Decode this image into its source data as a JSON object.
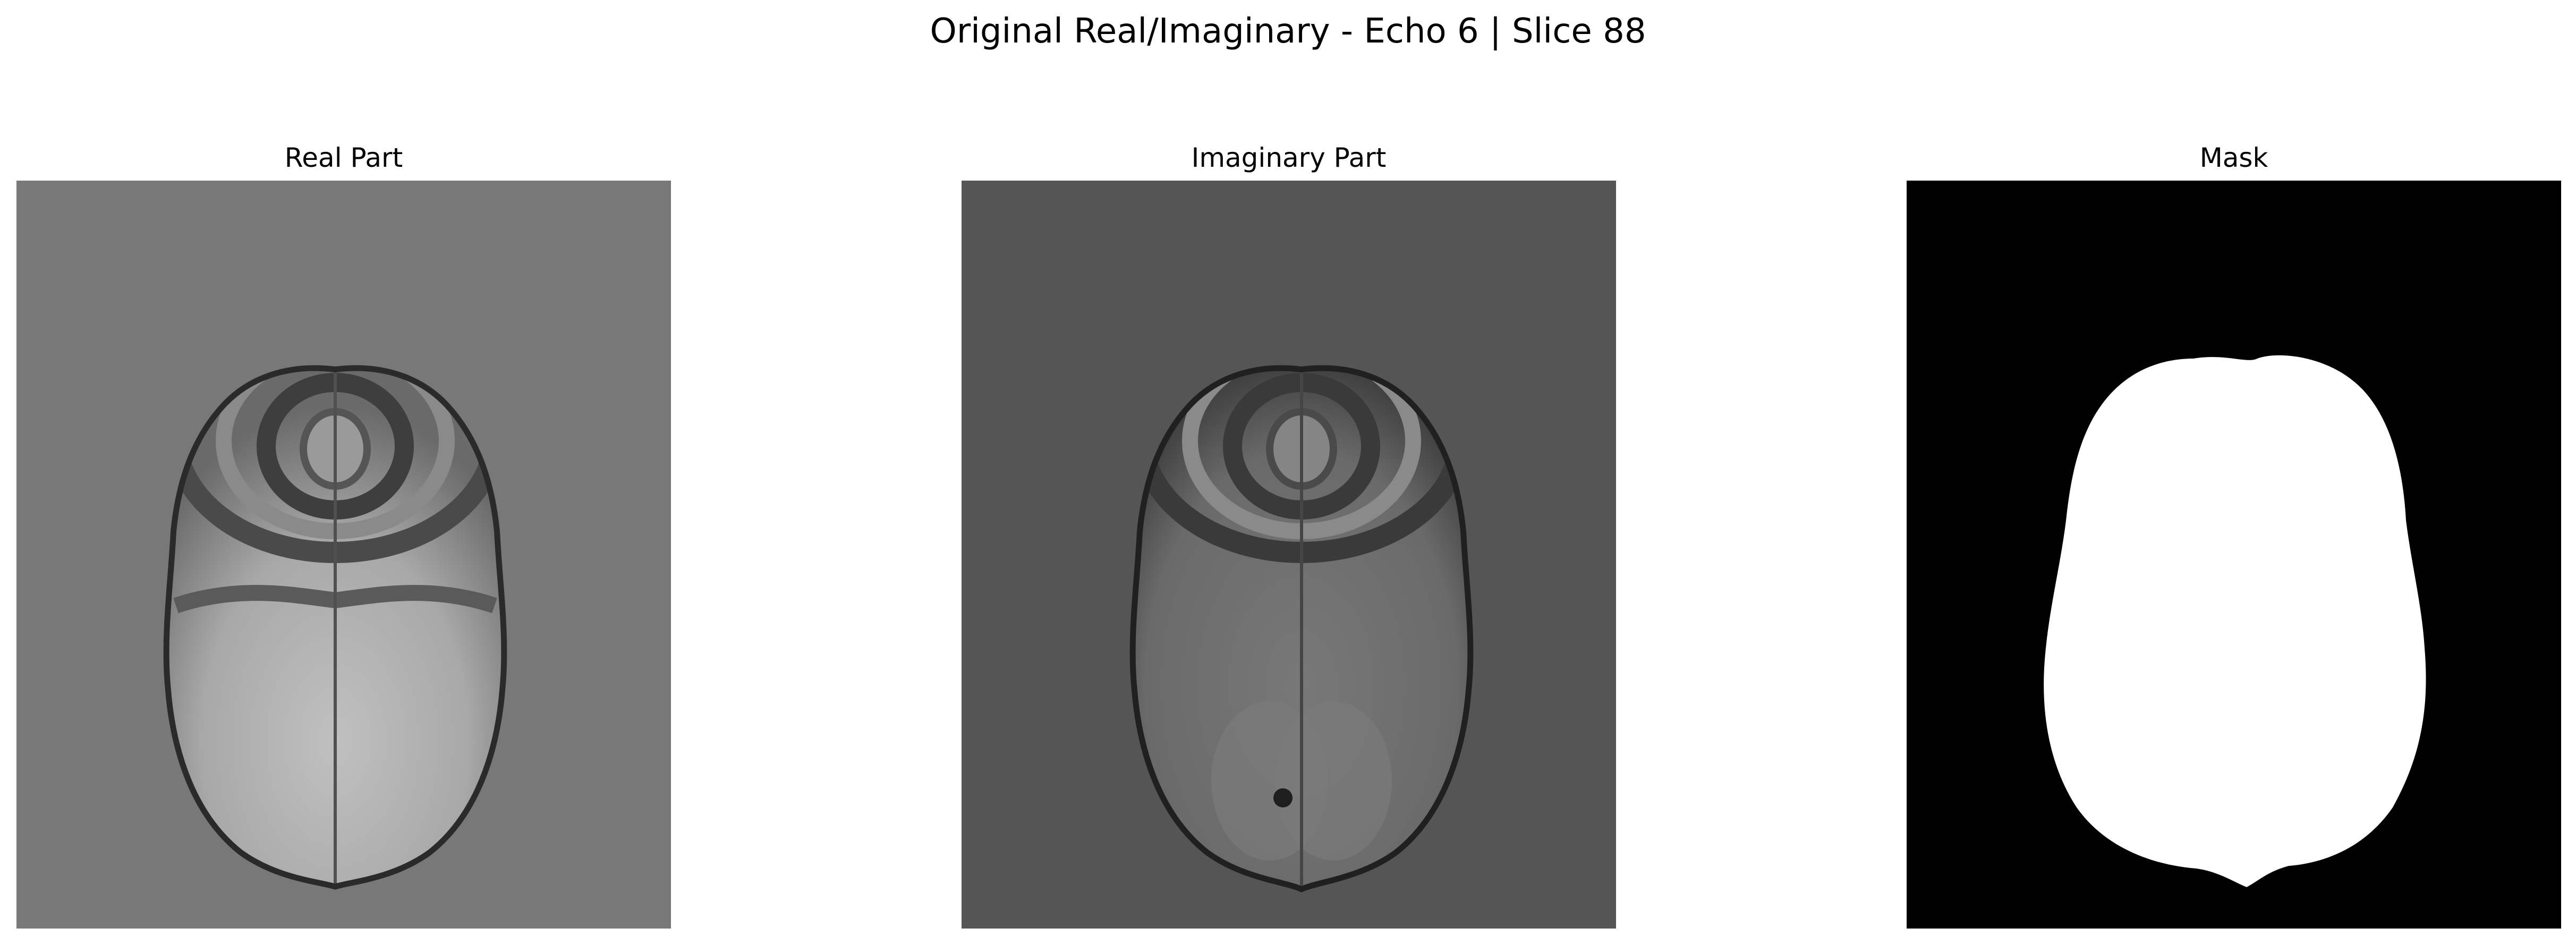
{
  "figure": {
    "title": "Original Real/Imaginary - Echo 6 | Slice 88"
  },
  "panels": [
    {
      "title": "Real Part",
      "image": "mri-brain-axial-real",
      "background_color": "#787878"
    },
    {
      "title": "Imaginary Part",
      "image": "mri-brain-axial-imaginary",
      "background_color": "#555555"
    },
    {
      "title": "Mask",
      "image": "binary-brain-mask",
      "background_color": "#000000",
      "mask_color": "#ffffff"
    }
  ]
}
